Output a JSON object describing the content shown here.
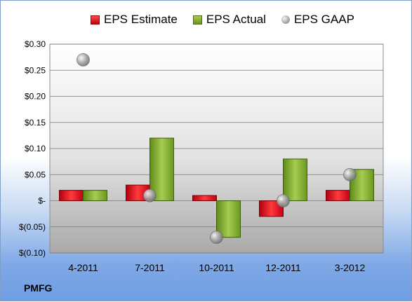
{
  "ticker": "PMFG",
  "chart_data": {
    "type": "bar",
    "categories": [
      "4-2011",
      "7-2011",
      "10-2011",
      "12-2011",
      "3-2012"
    ],
    "series": [
      {
        "name": "EPS Estimate",
        "type": "bar",
        "color": "#e01020",
        "values": [
          0.02,
          0.03,
          0.01,
          -0.03,
          0.02
        ]
      },
      {
        "name": "EPS Actual",
        "type": "bar",
        "color": "#7faa2a",
        "values": [
          0.02,
          0.12,
          -0.07,
          0.08,
          0.06
        ]
      },
      {
        "name": "EPS GAAP",
        "type": "scatter",
        "color": "#a6a6a6",
        "values": [
          0.27,
          0.01,
          -0.07,
          0.0,
          0.05
        ]
      }
    ],
    "ylim": [
      -0.1,
      0.3
    ],
    "yticks": [
      0.3,
      0.25,
      0.2,
      0.15,
      0.1,
      0.05,
      0.0,
      -0.05,
      -0.1
    ],
    "ytick_labels": [
      "$0.30",
      "$0.25",
      "$0.20",
      "$0.15",
      "$0.10",
      "$0.05",
      "$-",
      "$(0.05)",
      "$(0.10)"
    ],
    "grid": true,
    "legend": "top"
  }
}
